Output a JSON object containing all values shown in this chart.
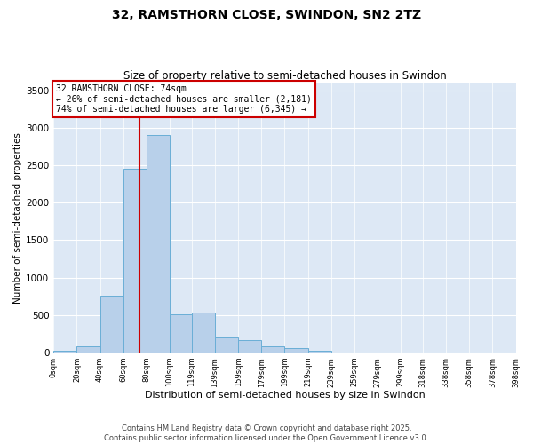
{
  "title1": "32, RAMSTHORN CLOSE, SWINDON, SN2 2TZ",
  "title2": "Size of property relative to semi-detached houses in Swindon",
  "xlabel": "Distribution of semi-detached houses by size in Swindon",
  "ylabel": "Number of semi-detached properties",
  "footer": "Contains HM Land Registry data © Crown copyright and database right 2025.\nContains public sector information licensed under the Open Government Licence v3.0.",
  "annotation_title": "32 RAMSTHORN CLOSE: 74sqm",
  "annotation_line1": "← 26% of semi-detached houses are smaller (2,181)",
  "annotation_line2": "74% of semi-detached houses are larger (6,345) →",
  "property_size": 74,
  "bar_color": "#b8d0ea",
  "bar_edge_color": "#6aaed6",
  "vline_color": "#cc0000",
  "background_color": "#dde8f5",
  "bins": [
    0,
    20,
    40,
    60,
    80,
    100,
    119,
    139,
    159,
    179,
    199,
    219,
    239,
    259,
    279,
    299,
    318,
    338,
    358,
    378,
    398
  ],
  "counts": [
    18,
    80,
    760,
    2450,
    2900,
    510,
    530,
    200,
    165,
    80,
    55,
    25,
    5,
    2,
    1,
    1,
    1,
    0,
    0,
    0
  ],
  "ylim": [
    0,
    3600
  ],
  "yticks": [
    0,
    500,
    1000,
    1500,
    2000,
    2500,
    3000,
    3500
  ]
}
